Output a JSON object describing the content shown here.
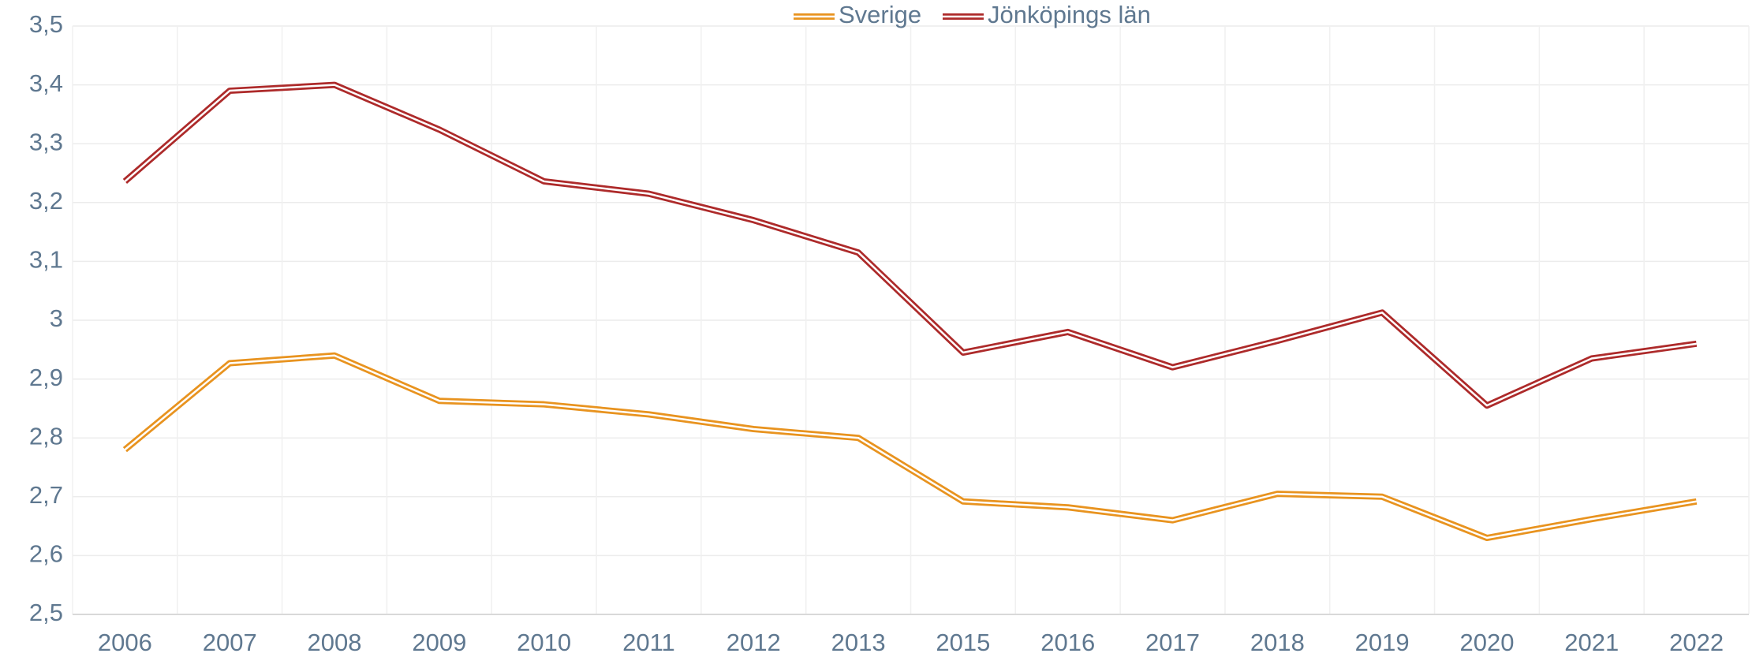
{
  "chart_data": {
    "type": "line",
    "categories": [
      "2006",
      "2007",
      "2008",
      "2009",
      "2010",
      "2011",
      "2012",
      "2013",
      "2015",
      "2016",
      "2017",
      "2018",
      "2019",
      "2020",
      "2021",
      "2022"
    ],
    "series": [
      {
        "name": "Sverige",
        "color": "#e8931f",
        "values": [
          2.78,
          2.927,
          2.94,
          2.863,
          2.857,
          2.84,
          2.815,
          2.8,
          2.692,
          2.682,
          2.66,
          2.705,
          2.7,
          2.63,
          2.662,
          2.692
        ]
      },
      {
        "name": "Jönköpings län",
        "color": "#ad2a2a",
        "values": [
          3.236,
          3.39,
          3.4,
          3.324,
          3.236,
          3.215,
          3.17,
          3.115,
          2.945,
          2.98,
          2.92,
          2.965,
          3.013,
          2.855,
          2.935,
          2.96
        ]
      }
    ],
    "ylim": [
      2.5,
      3.5
    ],
    "yticks": [
      {
        "value": 2.5,
        "label": "2,5"
      },
      {
        "value": 2.6,
        "label": "2,6"
      },
      {
        "value": 2.7,
        "label": "2,7"
      },
      {
        "value": 2.8,
        "label": "2,8"
      },
      {
        "value": 2.9,
        "label": "2,9"
      },
      3,
      {
        "value": 3.1,
        "label": "3,1"
      },
      {
        "value": 3.2,
        "label": "3,2"
      },
      {
        "value": 3.3,
        "label": "3,3"
      },
      {
        "value": 3.4,
        "label": "3,4"
      },
      {
        "value": 3.5,
        "label": "3,5"
      }
    ],
    "grid": true,
    "legend": "top"
  }
}
